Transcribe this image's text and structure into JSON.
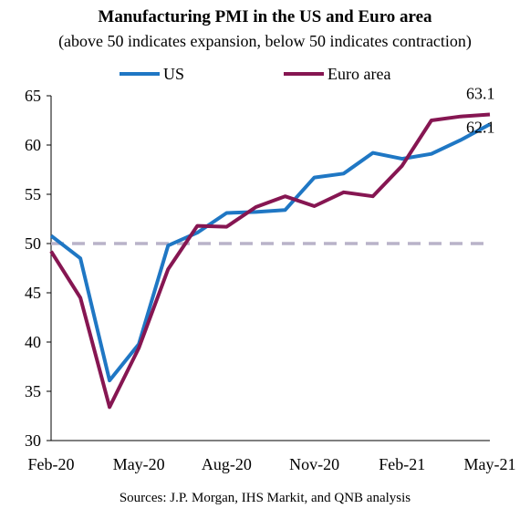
{
  "chart_data": {
    "type": "line",
    "title": "Manufacturing PMI in the US and Euro area",
    "subtitle": "(above 50 indicates expansion, below 50 indicates contraction)",
    "xlabel": "",
    "ylabel": "",
    "ylim": [
      30,
      65
    ],
    "yticks": [
      "30",
      "35",
      "40",
      "45",
      "50",
      "55",
      "60",
      "65"
    ],
    "x": [
      "Feb-20",
      "Mar-20",
      "Apr-20",
      "May-20",
      "Jun-20",
      "Jul-20",
      "Aug-20",
      "Sep-20",
      "Oct-20",
      "Nov-20",
      "Dec-20",
      "Jan-21",
      "Feb-21",
      "Mar-21",
      "Apr-21",
      "May-21"
    ],
    "xtick_labels": [
      "Feb-20",
      "May-20",
      "Aug-20",
      "Nov-20",
      "Feb-21",
      "May-21"
    ],
    "reference_line": {
      "value": 50,
      "color": "#b9b3c9",
      "style": "dashed"
    },
    "series": [
      {
        "name": "US",
        "color": "#1f77c4",
        "values": [
          50.8,
          48.5,
          36.1,
          39.8,
          49.8,
          51.1,
          53.1,
          53.2,
          53.4,
          56.7,
          57.1,
          59.2,
          58.6,
          59.1,
          60.5,
          62.1
        ],
        "end_label": "62.1"
      },
      {
        "name": "Euro area",
        "color": "#861652",
        "values": [
          49.2,
          44.5,
          33.4,
          39.4,
          47.4,
          51.8,
          51.7,
          53.7,
          54.8,
          53.8,
          55.2,
          54.8,
          57.9,
          62.5,
          62.9,
          63.1
        ],
        "end_label": "63.1"
      }
    ],
    "legend": {
      "position": "top-center",
      "entries": [
        "US",
        "Euro area"
      ]
    },
    "grid": false
  },
  "source": "Sources: J.P. Morgan, IHS Markit, and QNB analysis"
}
